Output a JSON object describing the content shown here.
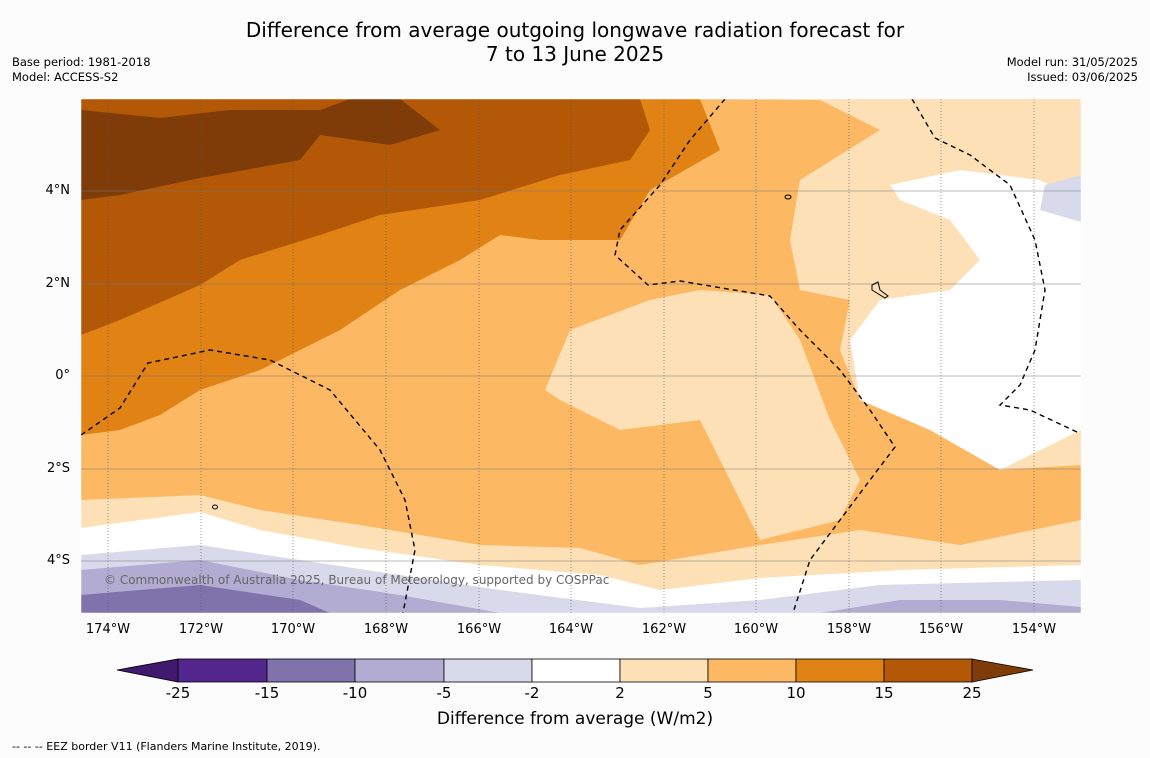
{
  "title_line1": "Difference from average outgoing longwave radiation forecast for",
  "title_line2": "7 to 13 June 2025",
  "base_period": "Base period: 1981-2018",
  "model": "Model: ACCESS-S2",
  "model_run": "Model run: 31/05/2025",
  "issued": "Issued: 03/06/2025",
  "copyright": "© Commonwealth of Australia 2025, Bureau of Meteorology, supported by COSPPac",
  "lat_labels": [
    "4°N",
    "2°N",
    "0°",
    "2°S",
    "4°S"
  ],
  "lon_labels": [
    "174°W",
    "172°W",
    "170°W",
    "168°W",
    "166°W",
    "164°W",
    "162°W",
    "160°W",
    "158°W",
    "156°W",
    "154°W"
  ],
  "colorbar": {
    "ticks": [
      "-25",
      "-15",
      "-10",
      "-5",
      "-2",
      "2",
      "5",
      "10",
      "15",
      "25"
    ],
    "label": "Difference from average (W/m2)",
    "colors": [
      "#3f1a6e",
      "#54278f",
      "#8073ac",
      "#b2abd2",
      "#d8daeb",
      "#ffffff",
      "#fee0b6",
      "#fdb863",
      "#e08214",
      "#b35806",
      "#7f3b08"
    ]
  },
  "footnote": "--  --  -- EEZ border V11 (Flanders Marine Institute, 2019)."
}
